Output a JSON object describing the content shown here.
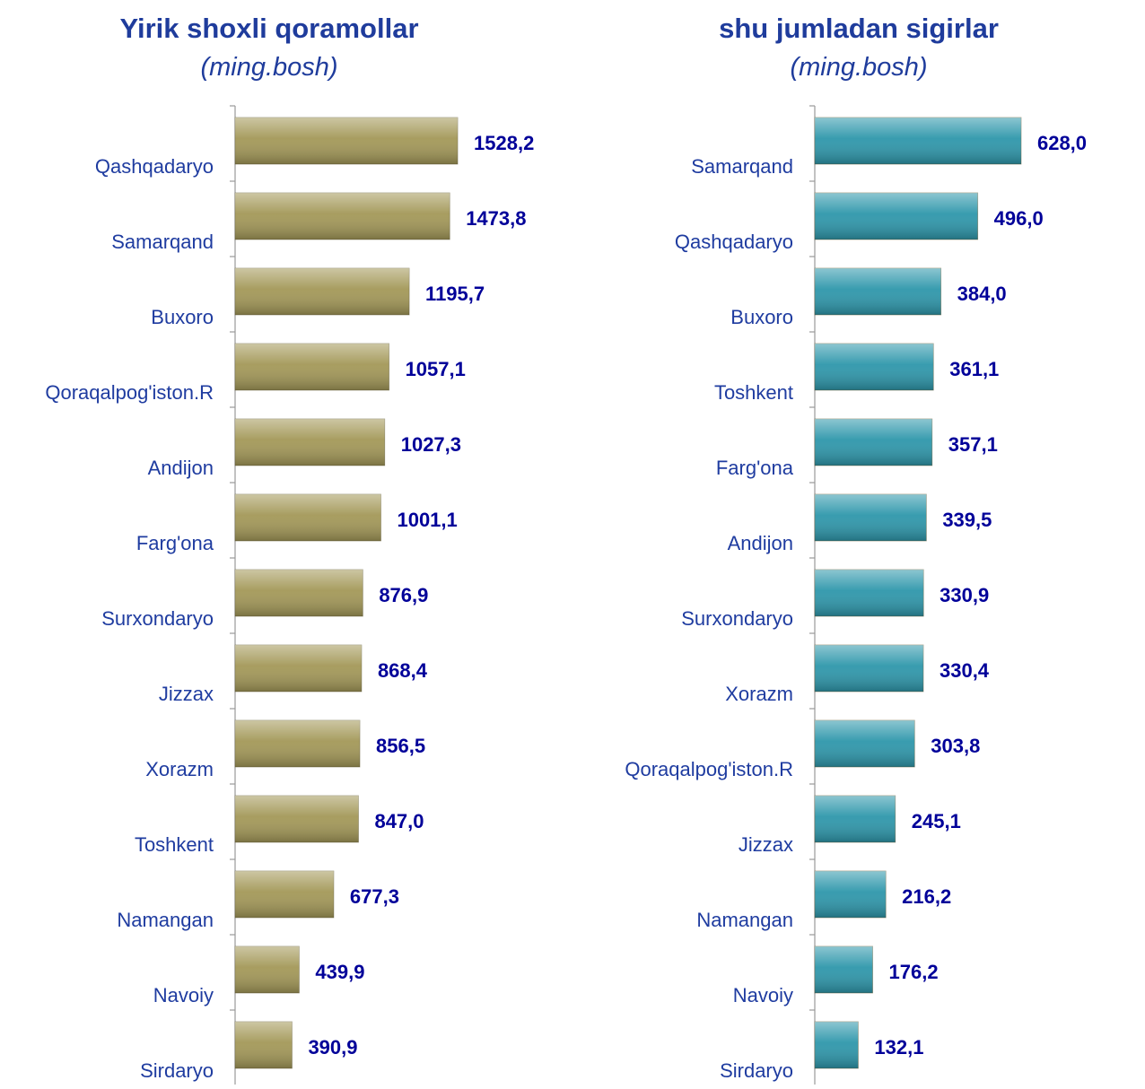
{
  "chart_data": [
    {
      "type": "bar",
      "orientation": "horizontal",
      "title": "Yirik shoxli qoramollar",
      "subtitle": "(ming.bosh)",
      "color": "#a39858",
      "categories": [
        "Qashqadaryo",
        "Samarqand",
        "Buxoro",
        "Qoraqalpog'iston.R",
        "Andijon",
        "Farg'ona",
        "Surxondaryo",
        "Jizzax",
        "Xorazm",
        "Toshkent",
        "Namangan",
        "Navoiy",
        "Sirdaryo"
      ],
      "values": [
        1528.2,
        1473.8,
        1195.7,
        1057.1,
        1027.3,
        1001.1,
        876.9,
        868.4,
        856.5,
        847.0,
        677.3,
        439.9,
        390.9
      ],
      "value_labels": [
        "1528,2",
        "1473,8",
        "1195,7",
        "1057,1",
        "1027,3",
        "1001,1",
        "876,9",
        "868,4",
        "856,5",
        "847,0",
        "677,3",
        "439,9",
        "390,9"
      ]
    },
    {
      "type": "bar",
      "orientation": "horizontal",
      "title": "shu jumladan sigirlar",
      "subtitle": "(ming.bosh)",
      "color": "#2e97ab",
      "categories": [
        "Samarqand",
        "Qashqadaryo",
        "Buxoro",
        "Toshkent",
        "Farg'ona",
        "Andijon",
        "Surxondaryo",
        "Xorazm",
        "Qoraqalpog'iston.R",
        "Jizzax",
        "Namangan",
        "Navoiy",
        "Sirdaryo"
      ],
      "values": [
        628.0,
        496.0,
        384.0,
        361.1,
        357.1,
        339.5,
        330.9,
        330.4,
        303.8,
        245.1,
        216.2,
        176.2,
        132.1
      ],
      "value_labels": [
        "628,0",
        "496,0",
        "384,0",
        "361,1",
        "357,1",
        "339,5",
        "330,9",
        "330,4",
        "303,8",
        "245,1",
        "216,2",
        "176,2",
        "132,1"
      ]
    }
  ]
}
